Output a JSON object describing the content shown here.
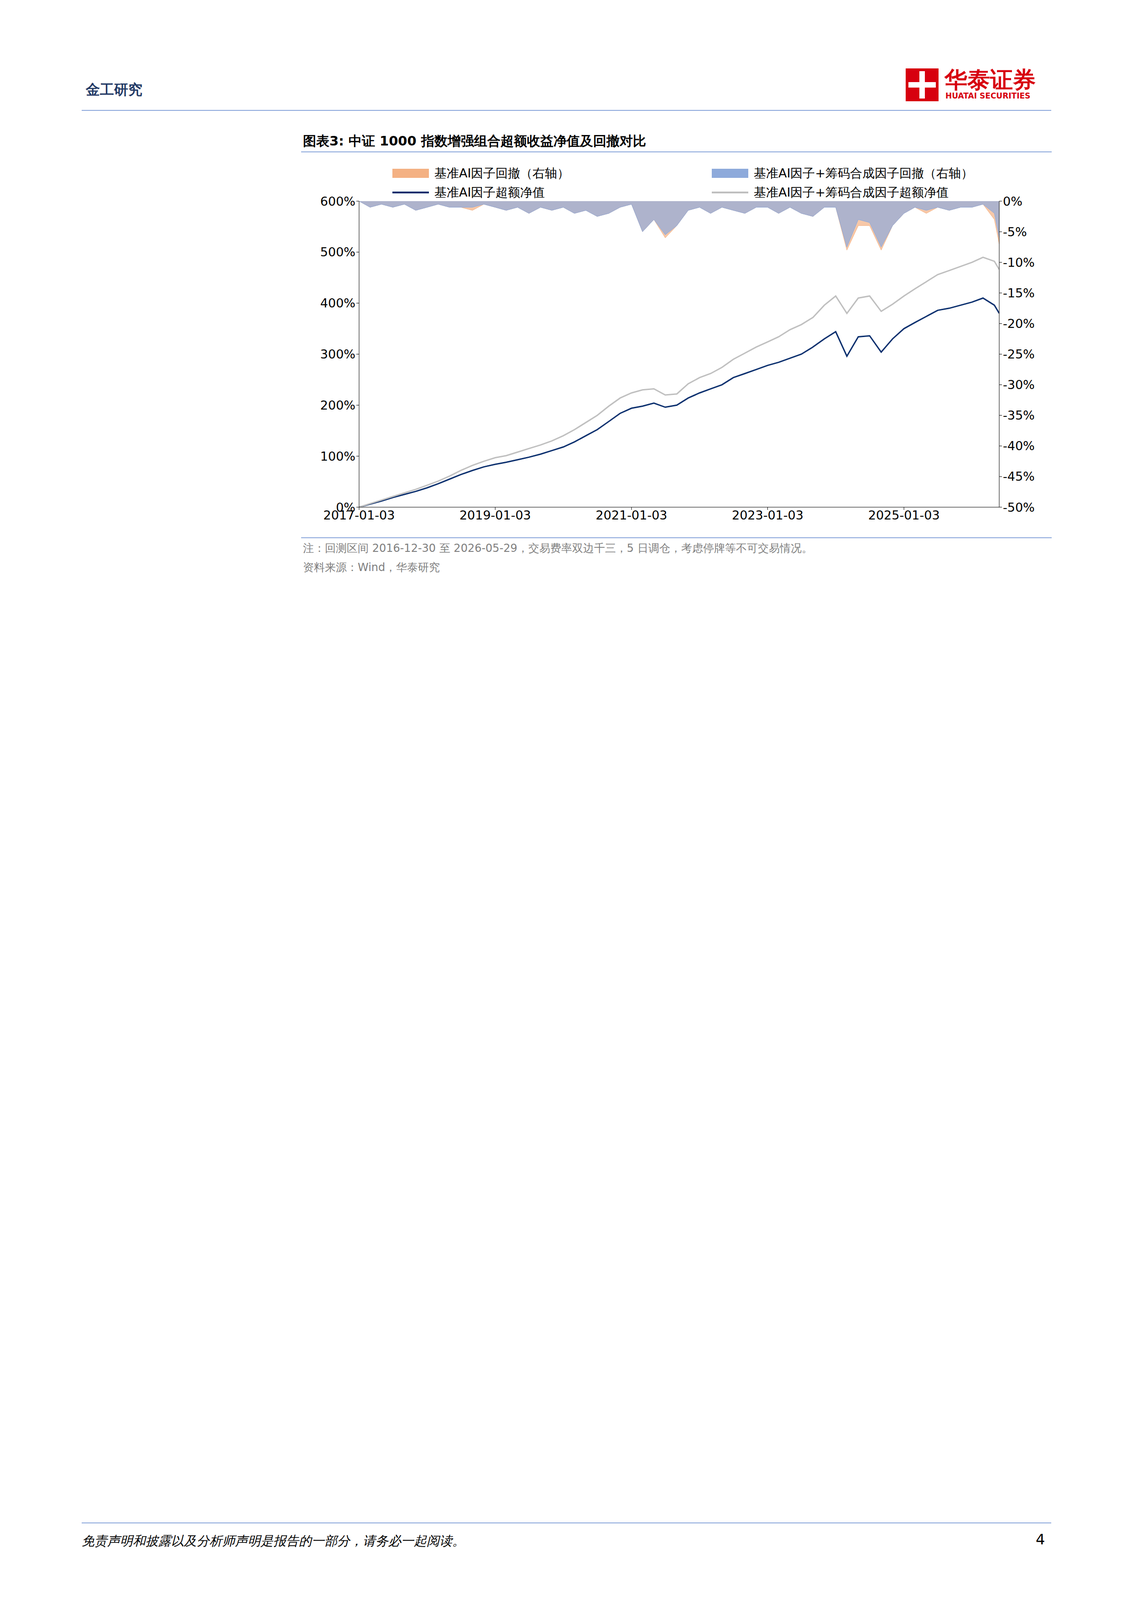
{
  "page": {
    "header": "金工研究",
    "logo": "华泰证券",
    "logo_en": "HUATAI SECURITIES",
    "footer": "免责声明和披露以及分析师声明是报告的一部分，请务必一起阅读。",
    "page_number": "4"
  },
  "chart_data": {
    "type": "line",
    "title": "图表3:  中证 1000 指数增强组合超额收益净值及回撤对比",
    "x": [
      "2017-01-03",
      "2017-03-03",
      "2017-05-03",
      "2017-07-03",
      "2017-09-03",
      "2017-11-03",
      "2018-01-03",
      "2018-03-03",
      "2018-05-03",
      "2018-07-03",
      "2018-09-03",
      "2018-11-03",
      "2019-01-03",
      "2019-03-03",
      "2019-05-03",
      "2019-07-03",
      "2019-09-03",
      "2019-11-03",
      "2020-01-03",
      "2020-03-03",
      "2020-05-03",
      "2020-07-03",
      "2020-09-03",
      "2020-11-03",
      "2021-01-03",
      "2021-03-03",
      "2021-05-03",
      "2021-07-03",
      "2021-09-03",
      "2021-11-03",
      "2022-01-03",
      "2022-03-03",
      "2022-05-03",
      "2022-07-03",
      "2022-09-03",
      "2022-11-03",
      "2023-01-03",
      "2023-03-03",
      "2023-05-03",
      "2023-07-03",
      "2023-09-03",
      "2023-11-03",
      "2024-01-03",
      "2024-03-03",
      "2024-05-03",
      "2024-07-03",
      "2024-09-03",
      "2024-11-03",
      "2025-01-03",
      "2025-03-03",
      "2025-05-03",
      "2025-07-03",
      "2025-09-03",
      "2025-11-03",
      "2026-01-03",
      "2026-03-03",
      "2026-05-03",
      "2026-05-29"
    ],
    "series": [
      {
        "name": "基准AI因子回撤（右轴）",
        "type": "area",
        "axis": "y2",
        "color": "#f4b183",
        "values": [
          0,
          -1,
          -0.5,
          -1,
          -0.5,
          -1.5,
          -1,
          -0.5,
          -1,
          -1,
          -1.5,
          -0.5,
          -1,
          -1.5,
          -1,
          -2,
          -1,
          -1.5,
          -1,
          -2,
          -1.5,
          -2.5,
          -2,
          -1,
          -0.5,
          -5,
          -3,
          -6,
          -4,
          -1.5,
          -1,
          -2,
          -1,
          -1.5,
          -2,
          -1,
          -1,
          -2,
          -1,
          -2,
          -2.5,
          -1,
          -1,
          -8,
          -4,
          -4,
          -8,
          -4,
          -2,
          -1,
          -2,
          -1,
          -1.5,
          -1,
          -1,
          -0.5,
          -3,
          -7
        ]
      },
      {
        "name": "基准AI因子+筹码合成因子回撤（右轴）",
        "type": "area",
        "axis": "y2",
        "color": "#8eaadb",
        "values": [
          0,
          -1,
          -0.5,
          -1,
          -0.5,
          -1.5,
          -1,
          -0.5,
          -1,
          -1,
          -1,
          -0.5,
          -1,
          -1.5,
          -1,
          -2,
          -1,
          -1.5,
          -1,
          -2,
          -1.5,
          -2.5,
          -2,
          -1,
          -0.5,
          -5,
          -3,
          -5.5,
          -4,
          -1.5,
          -1,
          -2,
          -1,
          -1.5,
          -2,
          -1,
          -1,
          -2,
          -1,
          -2,
          -2.5,
          -1,
          -1,
          -7.5,
          -3,
          -3.5,
          -7.5,
          -4,
          -2,
          -1,
          -1.5,
          -1,
          -1.5,
          -1,
          -1,
          -0.5,
          -2,
          -6
        ]
      },
      {
        "name": "基准AI因子超额净值",
        "type": "line",
        "color": "#0b2f6e",
        "values": [
          0,
          6,
          12,
          19,
          25,
          31,
          38,
          46,
          55,
          64,
          72,
          79,
          84,
          88,
          93,
          98,
          104,
          111,
          118,
          128,
          140,
          152,
          168,
          184,
          194,
          198,
          204,
          196,
          200,
          214,
          224,
          232,
          240,
          254,
          262,
          270,
          278,
          284,
          292,
          300,
          314,
          330,
          344,
          296,
          334,
          336,
          304,
          330,
          350,
          362,
          374,
          386,
          390,
          396,
          402,
          410,
          396,
          380
        ]
      },
      {
        "name": "基准AI因子+筹码合成因子超额净值",
        "type": "line",
        "color": "#bfbfbf",
        "values": [
          0,
          7,
          14,
          21,
          28,
          35,
          43,
          51,
          61,
          72,
          82,
          90,
          97,
          101,
          108,
          115,
          122,
          130,
          140,
          152,
          166,
          180,
          198,
          214,
          224,
          230,
          232,
          220,
          222,
          242,
          254,
          262,
          274,
          290,
          302,
          314,
          324,
          334,
          348,
          358,
          372,
          396,
          414,
          380,
          410,
          414,
          384,
          398,
          414,
          428,
          442,
          456,
          464,
          472,
          480,
          490,
          482,
          466
        ]
      }
    ],
    "xlim": [
      "2017-01-03",
      "2026-05-29"
    ],
    "xticks": [
      "2017-01-03",
      "2019-01-03",
      "2021-01-03",
      "2023-01-03",
      "2025-01-03"
    ],
    "ylim": [
      0,
      600
    ],
    "yticks": [
      {
        "value": 0,
        "label": "0%"
      },
      {
        "value": 100,
        "label": "100%"
      },
      {
        "value": 200,
        "label": "200%"
      },
      {
        "value": 300,
        "label": "300%"
      },
      {
        "value": 400,
        "label": "400%"
      },
      {
        "value": 500,
        "label": "500%"
      },
      {
        "value": 600,
        "label": "600%"
      }
    ],
    "y2lim": [
      -50,
      0
    ],
    "y2ticks": [
      {
        "value": -50,
        "label": "-50%"
      },
      {
        "value": -45,
        "label": "-45%"
      },
      {
        "value": -40,
        "label": "-40%"
      },
      {
        "value": -35,
        "label": "-35%"
      },
      {
        "value": -30,
        "label": "-30%"
      },
      {
        "value": -25,
        "label": "-25%"
      },
      {
        "value": -20,
        "label": "-20%"
      },
      {
        "value": -15,
        "label": "-15%"
      },
      {
        "value": -10,
        "label": "-10%"
      },
      {
        "value": -5,
        "label": "-5%"
      },
      {
        "value": 0,
        "label": "0%"
      }
    ],
    "legend": "top",
    "notes": [
      "注：回测区间 2016-12-30 至 2026-05-29，交易费率双边千三，5 日调仓，考虑停牌等不可交易情况。",
      "资料来源：Wind，华泰研究"
    ]
  }
}
